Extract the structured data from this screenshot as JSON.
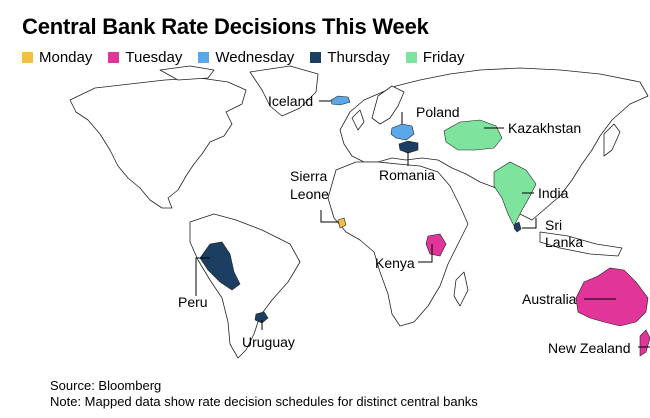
{
  "title": "Central Bank Rate Decisions This Week",
  "legend": [
    {
      "label": "Monday",
      "color": "#f2c043"
    },
    {
      "label": "Tuesday",
      "color": "#e2359a"
    },
    {
      "label": "Wednesday",
      "color": "#5aa8ea"
    },
    {
      "label": "Thursday",
      "color": "#1d3e63"
    },
    {
      "label": "Friday",
      "color": "#7ee39c"
    }
  ],
  "countries": {
    "iceland": {
      "label": "Iceland",
      "day": "Wednesday"
    },
    "poland": {
      "label": "Poland",
      "day": "Wednesday"
    },
    "kazakhstan": {
      "label": "Kazakhstan",
      "day": "Friday"
    },
    "romania": {
      "label": "Romania",
      "day": "Thursday"
    },
    "sierra_leone": {
      "line1": "Sierra",
      "line2": "Leone",
      "day": "Monday"
    },
    "india": {
      "label": "India",
      "day": "Friday"
    },
    "sri_lanka": {
      "line1": "Sri",
      "line2": "Lanka",
      "day": "Thursday"
    },
    "kenya": {
      "label": "Kenya",
      "day": "Tuesday"
    },
    "peru": {
      "label": "Peru",
      "day": "Thursday"
    },
    "uruguay": {
      "label": "Uruguay",
      "day": "Thursday"
    },
    "australia": {
      "label": "Australia",
      "day": "Tuesday"
    },
    "new_zealand": {
      "label": "New Zealand",
      "day": "Tuesday"
    }
  },
  "footer": {
    "source": "Source: Bloomberg",
    "note": "Note: Mapped data show rate decision schedules for distinct central banks"
  }
}
